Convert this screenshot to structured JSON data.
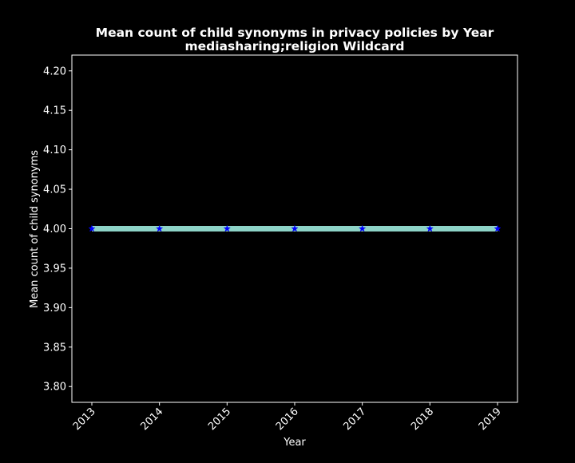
{
  "chart_data": {
    "type": "line",
    "title": "Mean count of child synonyms in privacy policies by Year",
    "subtitle": "mediasharing;religion Wildcard",
    "xlabel": "Year",
    "ylabel": "Mean count of child synonyms",
    "x": [
      "2013",
      "2014",
      "2015",
      "2016",
      "2017",
      "2018",
      "2019"
    ],
    "series": [
      {
        "values": [
          4.0,
          4.0,
          4.0,
          4.0,
          4.0,
          4.0,
          4.0
        ]
      }
    ],
    "ylim": [
      3.78,
      4.22
    ],
    "yticks": [
      "3.80",
      "3.85",
      "3.90",
      "3.95",
      "4.00",
      "4.05",
      "4.10",
      "4.15",
      "4.20"
    ],
    "grid": false,
    "colors": {
      "background": "#000000",
      "line": "#8dd3c7",
      "marker": "#0000ff",
      "text": "#ffffff",
      "axes": "#ffffff"
    },
    "marker": "star"
  }
}
